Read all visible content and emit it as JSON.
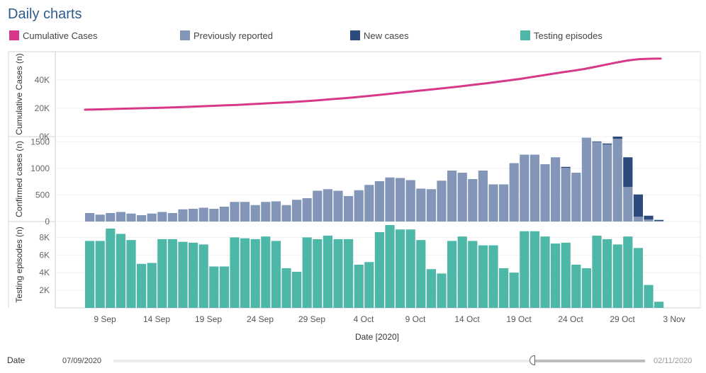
{
  "title": "Daily charts",
  "legend": [
    {
      "label": "Cumulative Cases",
      "color": "#d8388a"
    },
    {
      "label": "Previously reported",
      "color": "#8396b8"
    },
    {
      "label": "New cases",
      "color": "#2d4a7c"
    },
    {
      "label": "Testing episodes",
      "color": "#4eb8a8"
    }
  ],
  "chart_data": [
    {
      "type": "line",
      "ylabel": "Cumulative Cases (n)",
      "yticks": [
        "0K",
        "20K",
        "40K"
      ],
      "ylim": [
        0,
        60000
      ],
      "series": [
        {
          "name": "Cumulative Cases",
          "values": [
            19000,
            19200,
            19400,
            19600,
            19800,
            20000,
            20200,
            20400,
            20600,
            20900,
            21200,
            21500,
            21800,
            22100,
            22400,
            22800,
            23200,
            23600,
            24000,
            24400,
            24900,
            25400,
            26000,
            26600,
            27200,
            27900,
            28600,
            29400,
            30200,
            31000,
            31800,
            32600,
            33400,
            34200,
            35000,
            35900,
            36800,
            37700,
            38700,
            39700,
            40700,
            41900,
            43100,
            44300,
            45500,
            46600,
            47800,
            49300,
            50900,
            52400,
            53800,
            54700,
            55000,
            55100
          ]
        }
      ]
    },
    {
      "type": "bar",
      "ylabel": "Confirmed cases (n)",
      "yticks": [
        "0",
        "500",
        "1000",
        "1500"
      ],
      "ylim": [
        0,
        1600
      ],
      "series": [
        {
          "name": "Previously reported",
          "values": [
            160,
            130,
            160,
            180,
            150,
            120,
            150,
            180,
            160,
            230,
            240,
            260,
            240,
            280,
            370,
            370,
            310,
            370,
            380,
            310,
            410,
            440,
            580,
            610,
            580,
            480,
            590,
            690,
            760,
            830,
            820,
            780,
            620,
            610,
            770,
            960,
            920,
            800,
            960,
            700,
            700,
            1100,
            1260,
            1260,
            1080,
            1210,
            1010,
            920,
            1580,
            1500,
            1450,
            1560,
            650,
            90,
            40,
            10
          ]
        },
        {
          "name": "New cases",
          "values": [
            0,
            0,
            0,
            0,
            0,
            0,
            0,
            0,
            0,
            0,
            0,
            0,
            0,
            0,
            0,
            0,
            0,
            0,
            0,
            0,
            0,
            0,
            0,
            0,
            0,
            0,
            0,
            0,
            0,
            0,
            0,
            0,
            0,
            0,
            0,
            0,
            0,
            0,
            0,
            0,
            0,
            0,
            0,
            0,
            0,
            0,
            20,
            0,
            0,
            10,
            20,
            40,
            560,
            420,
            70,
            20
          ]
        }
      ]
    },
    {
      "type": "bar",
      "ylabel": "Testing episodes (n)",
      "yticks": [
        "2K",
        "4K",
        "6K",
        "8K"
      ],
      "ylim": [
        0,
        9800
      ],
      "series": [
        {
          "name": "Testing episodes",
          "values": [
            7600,
            7600,
            9000,
            8400,
            7700,
            5000,
            5100,
            7800,
            7800,
            7500,
            7400,
            7200,
            4700,
            4700,
            8000,
            7900,
            7800,
            8100,
            7600,
            4500,
            4100,
            8000,
            7800,
            8200,
            7800,
            7800,
            4900,
            5200,
            8600,
            9400,
            8900,
            8900,
            7700,
            4400,
            3900,
            7600,
            8100,
            7600,
            7100,
            7100,
            4500,
            4000,
            8700,
            8700,
            8100,
            7300,
            7400,
            4900,
            4500,
            8200,
            7800,
            7200,
            8100,
            6800,
            2600,
            700
          ]
        }
      ]
    }
  ],
  "x_axis": {
    "label": "Date [2020]",
    "ticks": [
      "9 Sep",
      "14 Sep",
      "19 Sep",
      "24 Sep",
      "29 Sep",
      "4 Oct",
      "9 Oct",
      "14 Oct",
      "19 Oct",
      "24 Oct",
      "29 Oct",
      "3 Nov"
    ]
  },
  "date_filter": {
    "label": "Date",
    "from": "07/09/2020",
    "to": "02/11/2020"
  }
}
